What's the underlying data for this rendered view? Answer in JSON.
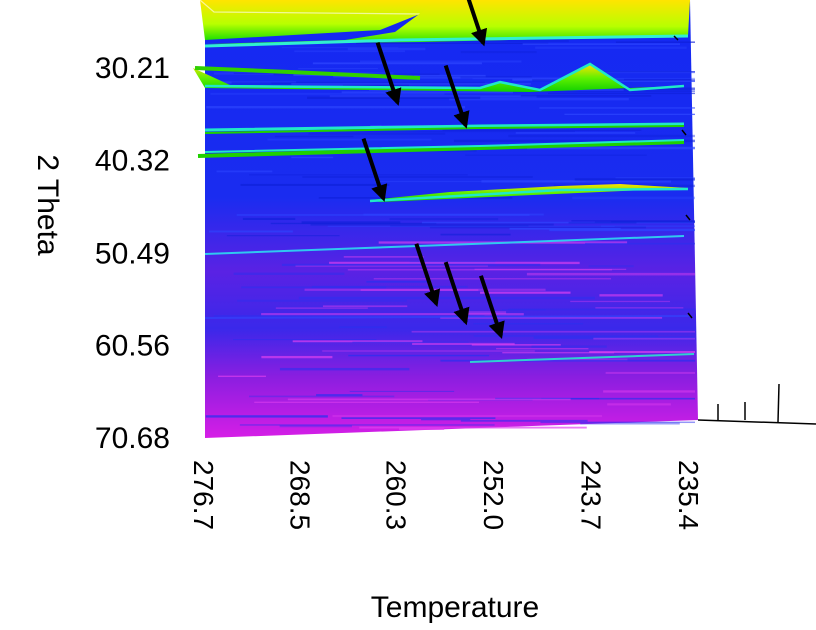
{
  "chart_data": {
    "type": "heatmap",
    "title": "",
    "xlabel": "Temperature",
    "ylabel": "2 Theta",
    "x_ticks": [
      "276.7",
      "268.5",
      "260.3",
      "252.0",
      "243.7",
      "235.4"
    ],
    "y_ticks": [
      "30.21",
      "40.32",
      "50.49",
      "60.56",
      "70.68"
    ],
    "xlim": [
      276.7,
      235.4
    ],
    "ylim": [
      25.0,
      70.68
    ],
    "colorscale": [
      "#ff00ff",
      "#0000ff",
      "#00e0e0",
      "#00ff00",
      "#ffff00"
    ],
    "colors": {
      "background_band": "#1a2ef0",
      "high_angle_band": "#c020e0",
      "peak_line": "#20e8c8",
      "peak_fill": "#19e000",
      "peak_top": "#ffe000",
      "arrow": "#000000",
      "axis_ticks": "#000000"
    },
    "peaks": [
      {
        "two_theta": 27.0,
        "intensity": "high"
      },
      {
        "two_theta": 29.5,
        "intensity": "medium",
        "extra_peak_temperature": 243.7
      },
      {
        "two_theta": 33.0,
        "intensity": "low"
      },
      {
        "two_theta": 37.0,
        "intensity": "low"
      },
      {
        "two_theta": 40.3,
        "intensity": "medium"
      },
      {
        "two_theta": 45.0,
        "intensity": "low",
        "appears_below_temperature": 260.3
      },
      {
        "two_theta": 49.5,
        "intensity": "low"
      },
      {
        "two_theta": 63.5,
        "intensity": "low"
      }
    ],
    "arrows": [
      {
        "temperature": 253.0,
        "two_theta": 27.5
      },
      {
        "temperature": 260.3,
        "two_theta": 34.0
      },
      {
        "temperature": 254.5,
        "two_theta": 36.5
      },
      {
        "temperature": 261.5,
        "two_theta": 44.5
      },
      {
        "temperature": 257.0,
        "two_theta": 56.0
      },
      {
        "temperature": 254.5,
        "two_theta": 58.0
      },
      {
        "temperature": 251.5,
        "two_theta": 59.5
      }
    ]
  }
}
